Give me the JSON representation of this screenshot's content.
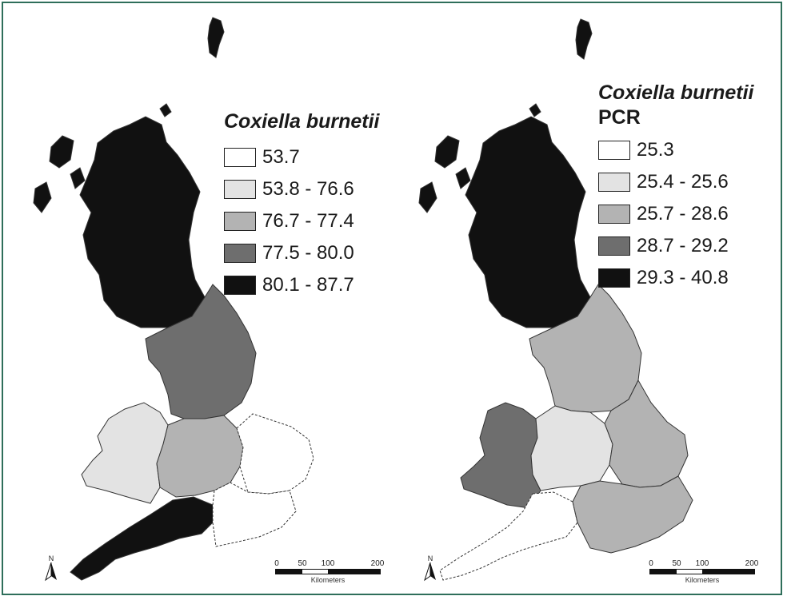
{
  "colors": {
    "class1": "#ffffff",
    "class2": "#e3e3e3",
    "class3": "#b3b3b3",
    "class4": "#6e6e6e",
    "class5": "#111111",
    "border": "#2e6e5a"
  },
  "maps": [
    {
      "legend": {
        "title": "Coxiella burnetii",
        "subtitle": "",
        "classes": [
          "53.7",
          "53.8 - 76.6",
          "76.7 - 77.4",
          "77.5 - 80.0",
          "80.1 - 87.7"
        ]
      },
      "region_class": {
        "scotland": 5,
        "north_england": 4,
        "wales": 2,
        "midlands": 3,
        "south_west": 5,
        "east_england": 1,
        "south_east": 1
      },
      "scalebar": {
        "ticks": [
          "0",
          "50",
          "100",
          "200"
        ],
        "unit": "Kilometers"
      },
      "north_label": "N"
    },
    {
      "legend": {
        "title": "Coxiella burnetii",
        "subtitle": "PCR",
        "classes": [
          "25.3",
          "25.4 - 25.6",
          "25.7 - 28.6",
          "28.7 - 29.2",
          "29.3 - 40.8"
        ]
      },
      "region_class": {
        "scotland": 5,
        "north_england": 3,
        "wales": 4,
        "midlands": 2,
        "south_west": 1,
        "east_england": 3,
        "south_east": 3
      },
      "scalebar": {
        "ticks": [
          "0",
          "50",
          "100",
          "200"
        ],
        "unit": "Kilometers"
      },
      "north_label": "N"
    }
  ]
}
